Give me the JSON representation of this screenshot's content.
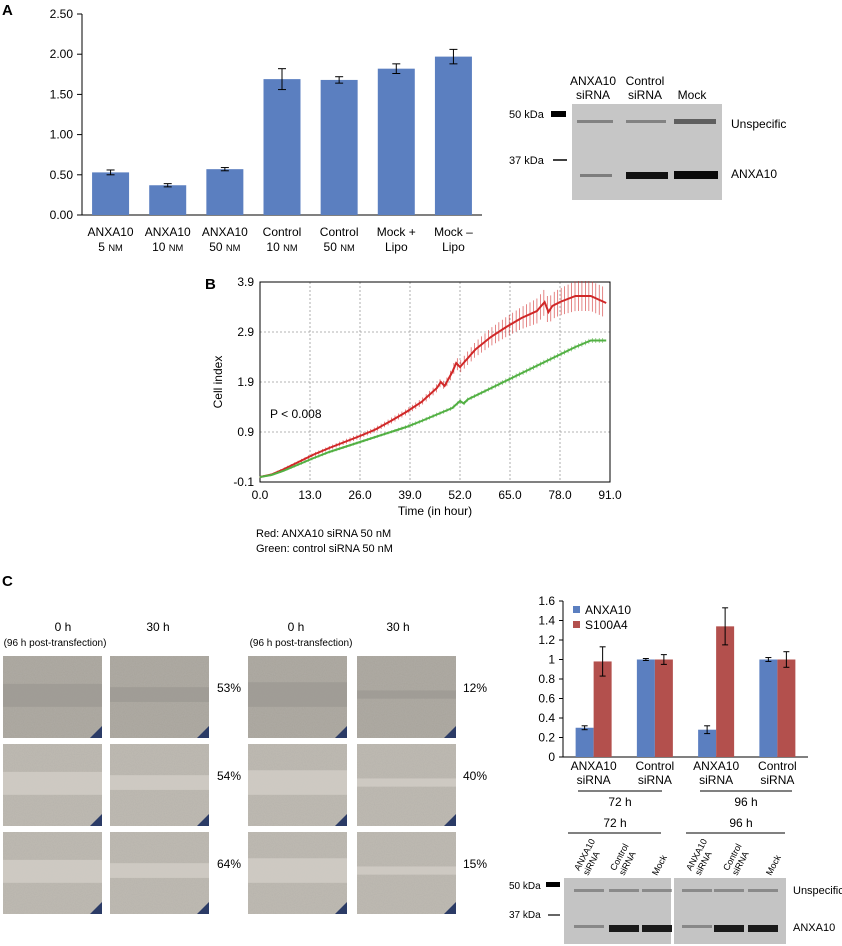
{
  "colors": {
    "bar_blue": "#5b7fc0",
    "bar_red": "#b3504d",
    "red_line": "#d02828",
    "green_line": "#52b043",
    "blot_bg": "#c4c4c4",
    "band": "#1a1a1a"
  },
  "panel_labels": {
    "a": "A",
    "b": "B",
    "c": "C"
  },
  "chart_data": [
    {
      "id": "panel-a-bar",
      "type": "bar",
      "title": "",
      "xlabel": "",
      "ylabel": "",
      "ylim": [
        0,
        2.5
      ],
      "yticks": [
        "0.00",
        "0.50",
        "1.00",
        "1.50",
        "2.00",
        "2.50"
      ],
      "categories": [
        [
          "ANXA10",
          "5 nM"
        ],
        [
          "ANXA10",
          "10 nM"
        ],
        [
          "ANXA10",
          "50 nM"
        ],
        [
          "Control",
          "10 nM"
        ],
        [
          "Control",
          "50 nM"
        ],
        [
          "Mock +",
          "Lipo"
        ],
        [
          "Mock –",
          "Lipo"
        ]
      ],
      "values": [
        0.53,
        0.37,
        0.57,
        1.69,
        1.68,
        1.82,
        1.97
      ],
      "errors": [
        0.03,
        0.02,
        0.02,
        0.13,
        0.04,
        0.06,
        0.09
      ]
    },
    {
      "id": "panel-b-line",
      "type": "line",
      "xlabel": "Time (in hour)",
      "ylabel": "Cell index",
      "xlim": [
        0,
        91
      ],
      "ylim": [
        -0.1,
        3.9
      ],
      "xticks": [
        "0.0",
        "13.0",
        "26.0",
        "39.0",
        "52.0",
        "65.0",
        "78.0",
        "91.0"
      ],
      "yticks": [
        "-0.1",
        "0.9",
        "1.9",
        "2.9",
        "3.9"
      ],
      "annotation": "P < 0.008",
      "legend": [
        "Red: ANXA10 siRNA 50 nM",
        "Green: control siRNA 50 nM"
      ],
      "series": [
        {
          "name": "ANXA10 siRNA 50 nM",
          "color": "red",
          "x": [
            0,
            3,
            6,
            10,
            14,
            18,
            22,
            26,
            30,
            34,
            38,
            42,
            46,
            47,
            48,
            50,
            51,
            52,
            56,
            60,
            64,
            68,
            72,
            74,
            75,
            76,
            78,
            82,
            86,
            90
          ],
          "y": [
            0.0,
            0.05,
            0.15,
            0.3,
            0.45,
            0.58,
            0.7,
            0.82,
            0.95,
            1.12,
            1.3,
            1.5,
            1.78,
            1.9,
            1.82,
            2.1,
            2.28,
            2.2,
            2.55,
            2.8,
            3.0,
            3.18,
            3.32,
            3.5,
            3.3,
            3.42,
            3.5,
            3.62,
            3.62,
            3.48
          ],
          "err": [
            0.02,
            0.02,
            0.03,
            0.03,
            0.04,
            0.04,
            0.05,
            0.05,
            0.05,
            0.06,
            0.06,
            0.07,
            0.08,
            0.08,
            0.08,
            0.1,
            0.12,
            0.12,
            0.15,
            0.18,
            0.2,
            0.22,
            0.25,
            0.26,
            0.26,
            0.26,
            0.27,
            0.3,
            0.3,
            0.3
          ]
        },
        {
          "name": "control siRNA 50 nM",
          "color": "green",
          "x": [
            0,
            3,
            6,
            10,
            14,
            18,
            22,
            26,
            30,
            34,
            38,
            42,
            46,
            50,
            52,
            53,
            54,
            58,
            62,
            66,
            70,
            74,
            78,
            82,
            86,
            90
          ],
          "y": [
            0.0,
            0.04,
            0.12,
            0.25,
            0.38,
            0.5,
            0.6,
            0.7,
            0.8,
            0.9,
            1.0,
            1.12,
            1.25,
            1.38,
            1.52,
            1.47,
            1.55,
            1.7,
            1.85,
            2.0,
            2.15,
            2.3,
            2.45,
            2.6,
            2.73,
            2.73
          ],
          "err": [
            0.02,
            0.02,
            0.02,
            0.03,
            0.03,
            0.03,
            0.03,
            0.03,
            0.03,
            0.03,
            0.04,
            0.04,
            0.04,
            0.04,
            0.04,
            0.04,
            0.04,
            0.04,
            0.05,
            0.05,
            0.05,
            0.05,
            0.05,
            0.05,
            0.05,
            0.05
          ]
        }
      ]
    },
    {
      "id": "panel-c-bar",
      "type": "bar",
      "ylim": [
        0,
        1.6
      ],
      "yticks": [
        "0",
        "0.2",
        "0.4",
        "0.6",
        "0.8",
        "1",
        "1.2",
        "1.4",
        "1.6"
      ],
      "categories": [
        [
          "ANXA10",
          "siRNA"
        ],
        [
          "Control",
          "siRNA"
        ],
        [
          "ANXA10",
          "siRNA"
        ],
        [
          "Control",
          "siRNA"
        ]
      ],
      "groups": [
        "72 h",
        "96 h"
      ],
      "legend_position": "top-left",
      "series": [
        {
          "name": "ANXA10",
          "color": "blue",
          "values": [
            0.3,
            1.0,
            0.28,
            1.0
          ],
          "errors": [
            0.02,
            0.01,
            0.04,
            0.02
          ]
        },
        {
          "name": "S100A4",
          "color": "red",
          "values": [
            0.98,
            1.0,
            1.34,
            1.0
          ],
          "errors": [
            0.15,
            0.05,
            0.19,
            0.08
          ]
        }
      ]
    }
  ],
  "blot_a": {
    "lane_labels": [
      [
        "ANXA10",
        "siRNA"
      ],
      [
        "Control",
        "siRNA"
      ],
      [
        "Mock"
      ]
    ],
    "markers": [
      "50 kDa",
      "37 kDa"
    ],
    "band_labels": [
      "Unspecific",
      "ANXA10"
    ]
  },
  "blot_c": {
    "time_labels": [
      "72 h",
      "96 h"
    ],
    "lane_labels": [
      "ANXA10 siRNA",
      "Control siRNA",
      "Mock",
      "ANXA10 siRNA",
      "Control siRNA",
      "Mock"
    ],
    "markers": [
      "50 kDa",
      "37 kDa"
    ],
    "band_labels": [
      "Unspecific",
      "ANXA10"
    ]
  },
  "wound_assay": {
    "headers": [
      "0 h",
      "30 h",
      "0 h",
      "30 h"
    ],
    "subheader": "(96 h post-transfection)",
    "left_percentages": [
      "53%",
      "54%",
      "64%"
    ],
    "right_percentages": [
      "12%",
      "40%",
      "15%"
    ]
  }
}
